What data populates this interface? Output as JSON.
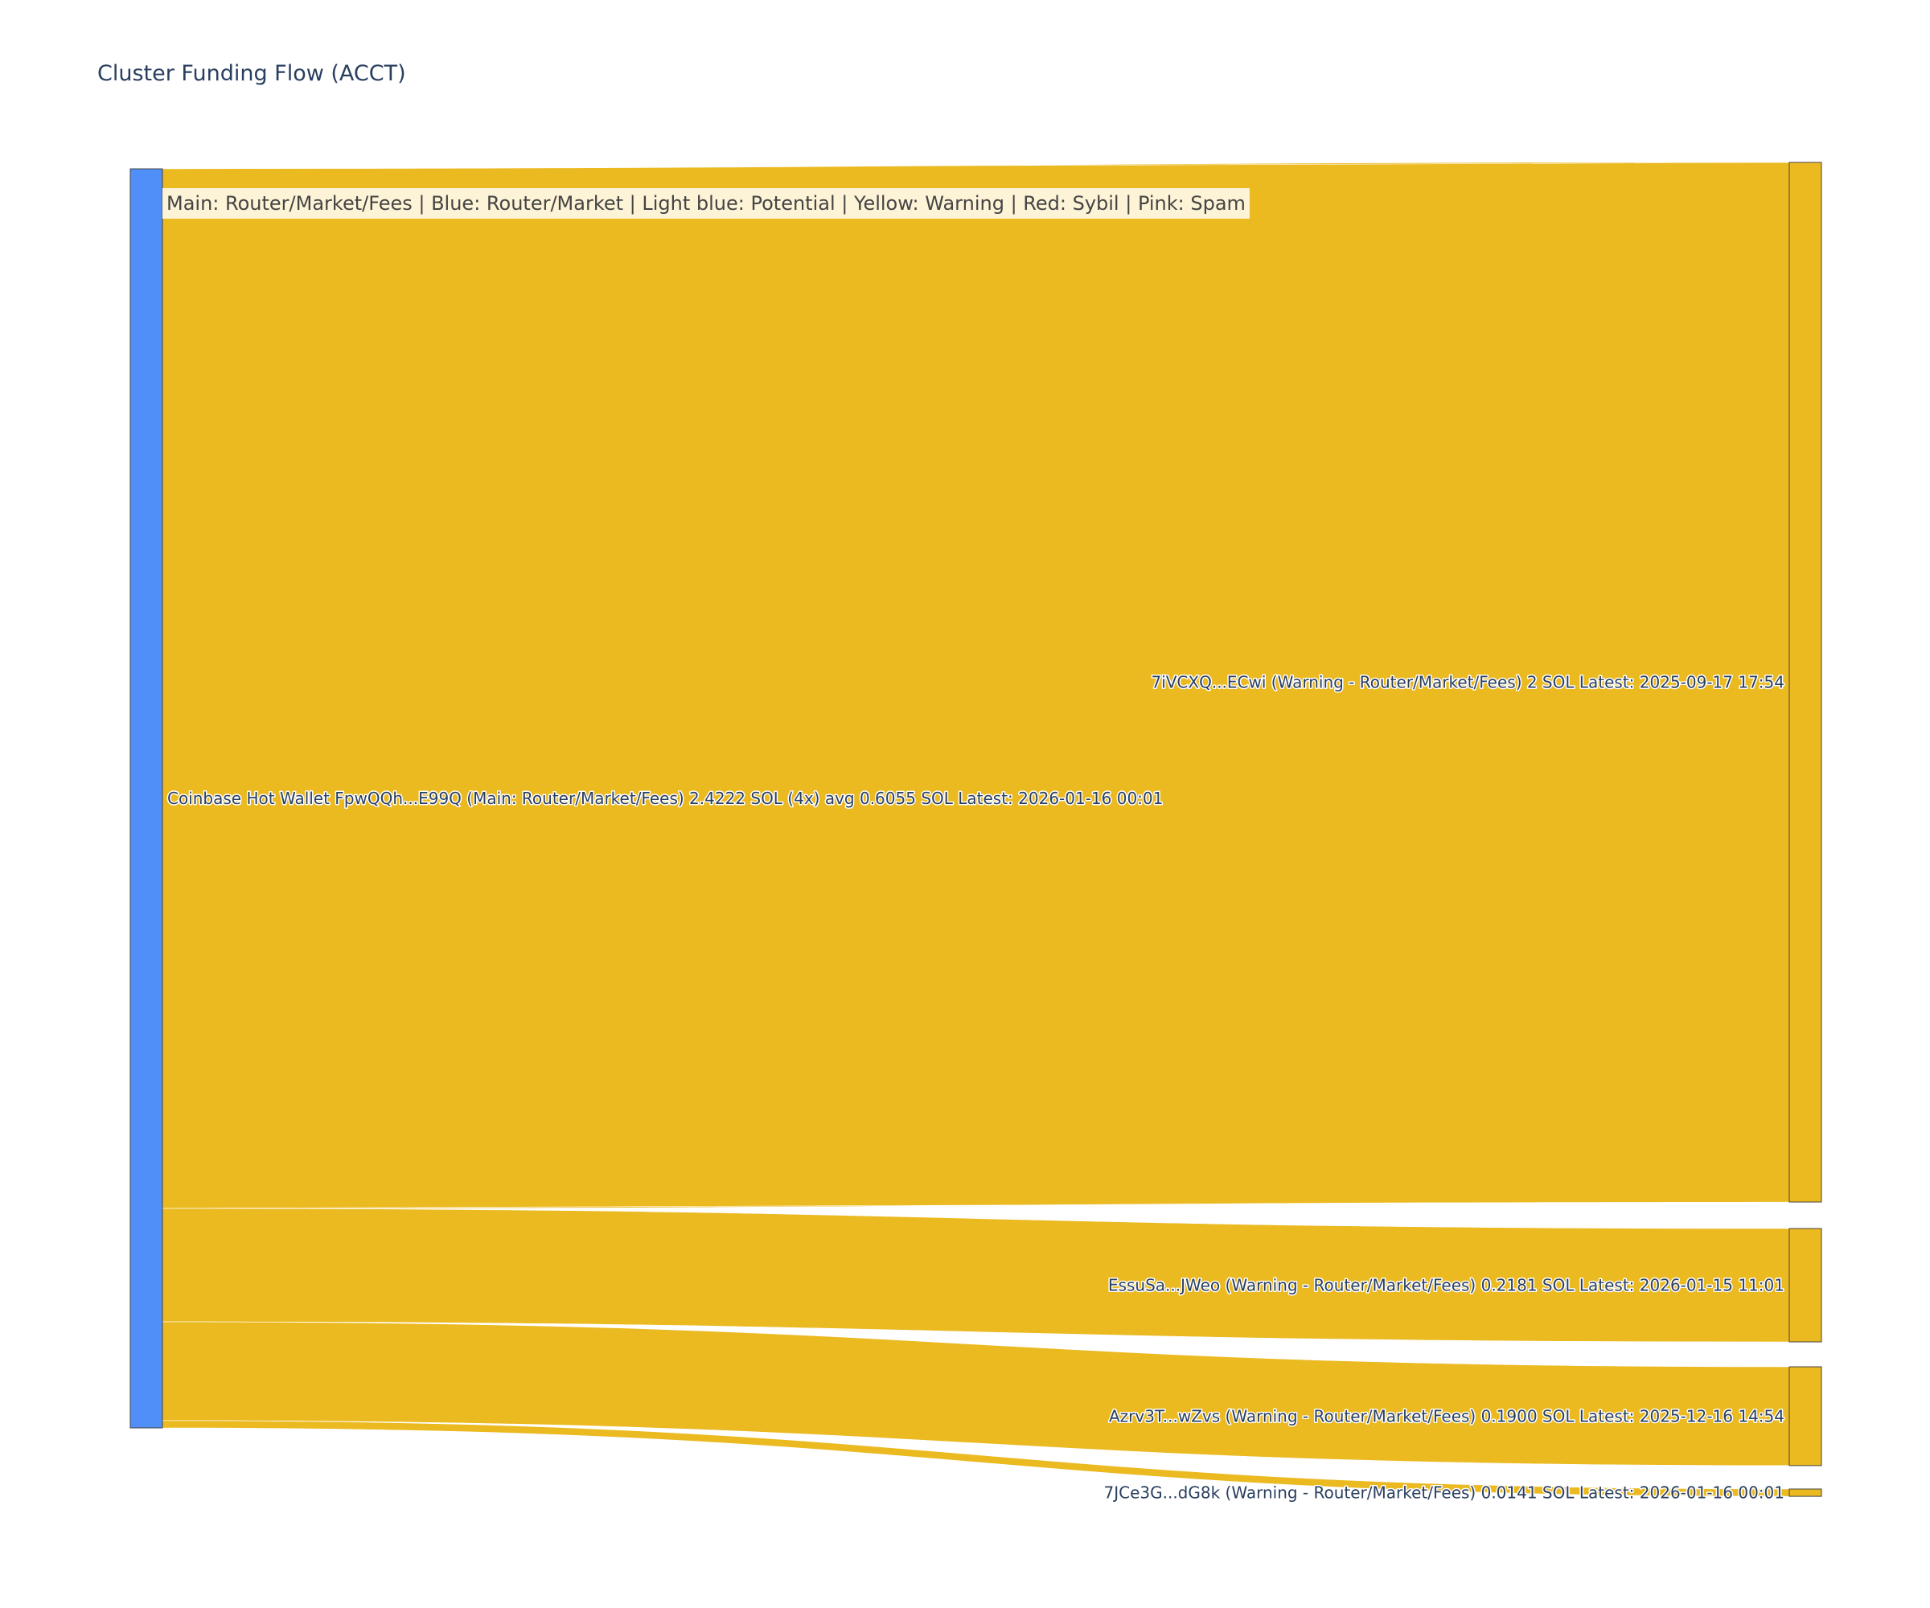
{
  "chart_data": {
    "type": "sankey",
    "title": "Cluster Funding Flow (ACCT)",
    "legend_note": "Main: Router/Market/Fees  |  Blue: Router/Market | Light blue: Potential | Yellow: Warning | Red: Sybil | Pink: Spam",
    "unit": "SOL",
    "colors": {
      "source_node": "#4f8ff7",
      "warning": "#ebb920",
      "node_border": "#444444",
      "legend_bg": "#fdf3d6",
      "text": "#2a3f5f"
    },
    "nodes": [
      {
        "id": "source",
        "label": "Coinbase Hot Wallet  FpwQQh...E99Q (Main: Router/Market/Fees) 2.4222 SOL (4x) avg 0.6055 SOL Latest: 2026-01-16 00:01",
        "category": "Main: Router/Market/Fees",
        "column": 0
      },
      {
        "id": "t1",
        "label": "7iVCXQ...ECwi (Warning - Router/Market/Fees) 2 SOL Latest: 2025-09-17 17:54",
        "category": "Warning",
        "column": 1
      },
      {
        "id": "t2",
        "label": "EssuSa...JWeo (Warning - Router/Market/Fees) 0.2181 SOL Latest: 2026-01-15 11:01",
        "category": "Warning",
        "column": 1
      },
      {
        "id": "t3",
        "label": "Azrv3T...wZvs (Warning - Router/Market/Fees) 0.1900 SOL Latest: 2025-12-16 14:54",
        "category": "Warning",
        "column": 1
      },
      {
        "id": "t4",
        "label": "7JCe3G...dG8k (Warning - Router/Market/Fees) 0.0141 SOL Latest: 2026-01-16 00:01",
        "category": "Warning",
        "column": 1
      }
    ],
    "links": [
      {
        "source": "source",
        "target": "t1",
        "value": 2.0
      },
      {
        "source": "source",
        "target": "t2",
        "value": 0.2181
      },
      {
        "source": "source",
        "target": "t3",
        "value": 0.19
      },
      {
        "source": "source",
        "target": "t4",
        "value": 0.0141
      }
    ]
  }
}
